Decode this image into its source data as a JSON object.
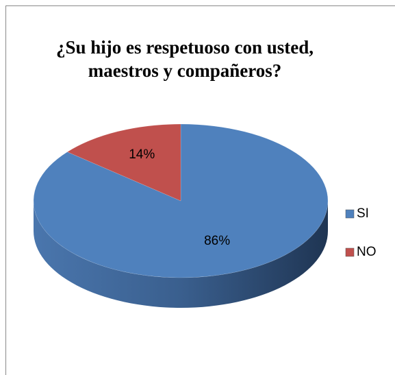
{
  "chart_data": {
    "type": "pie3d",
    "title": "¿Su hijo es respetuoso con usted, maestros y compañeros?",
    "categories": [
      "SI",
      "NO"
    ],
    "values": [
      86,
      14
    ],
    "value_labels": [
      "86%",
      "14%"
    ],
    "colors": [
      "#4f81bd",
      "#c0504d"
    ],
    "legend": "right"
  }
}
